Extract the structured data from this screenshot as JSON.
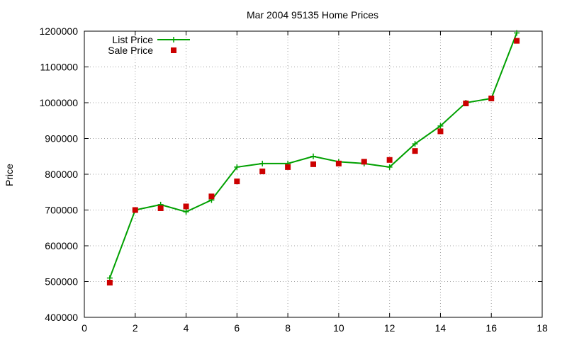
{
  "chart_data": {
    "type": "line",
    "title": "Mar 2004 95135 Home Prices",
    "xlabel": "",
    "ylabel": "Price",
    "xlim": [
      0,
      18
    ],
    "ylim": [
      400000,
      1200000
    ],
    "xticks": [
      0,
      2,
      4,
      6,
      8,
      10,
      12,
      14,
      16,
      18
    ],
    "yticks": [
      400000,
      500000,
      600000,
      700000,
      800000,
      900000,
      1000000,
      1100000,
      1200000
    ],
    "grid": true,
    "legend_position": "top-left",
    "series": [
      {
        "name": "List Price",
        "style": "line-plus",
        "color": "#00a000",
        "x": [
          1,
          2,
          3,
          4,
          5,
          6,
          7,
          8,
          9,
          10,
          11,
          12,
          13,
          14,
          15,
          16,
          17
        ],
        "y": [
          510000,
          700000,
          715000,
          695000,
          728000,
          820000,
          830000,
          830000,
          850000,
          835000,
          830000,
          820000,
          885000,
          935000,
          1000000,
          1012000,
          1195000
        ]
      },
      {
        "name": "Sale Price",
        "style": "square",
        "color": "#cc0000",
        "x": [
          1,
          2,
          3,
          4,
          5,
          6,
          7,
          8,
          9,
          10,
          11,
          12,
          13,
          14,
          15,
          16,
          17
        ],
        "y": [
          497000,
          700000,
          705000,
          710000,
          738000,
          780000,
          808000,
          820000,
          828000,
          830000,
          835000,
          840000,
          865000,
          920000,
          998000,
          1012000,
          1173000
        ]
      }
    ]
  }
}
